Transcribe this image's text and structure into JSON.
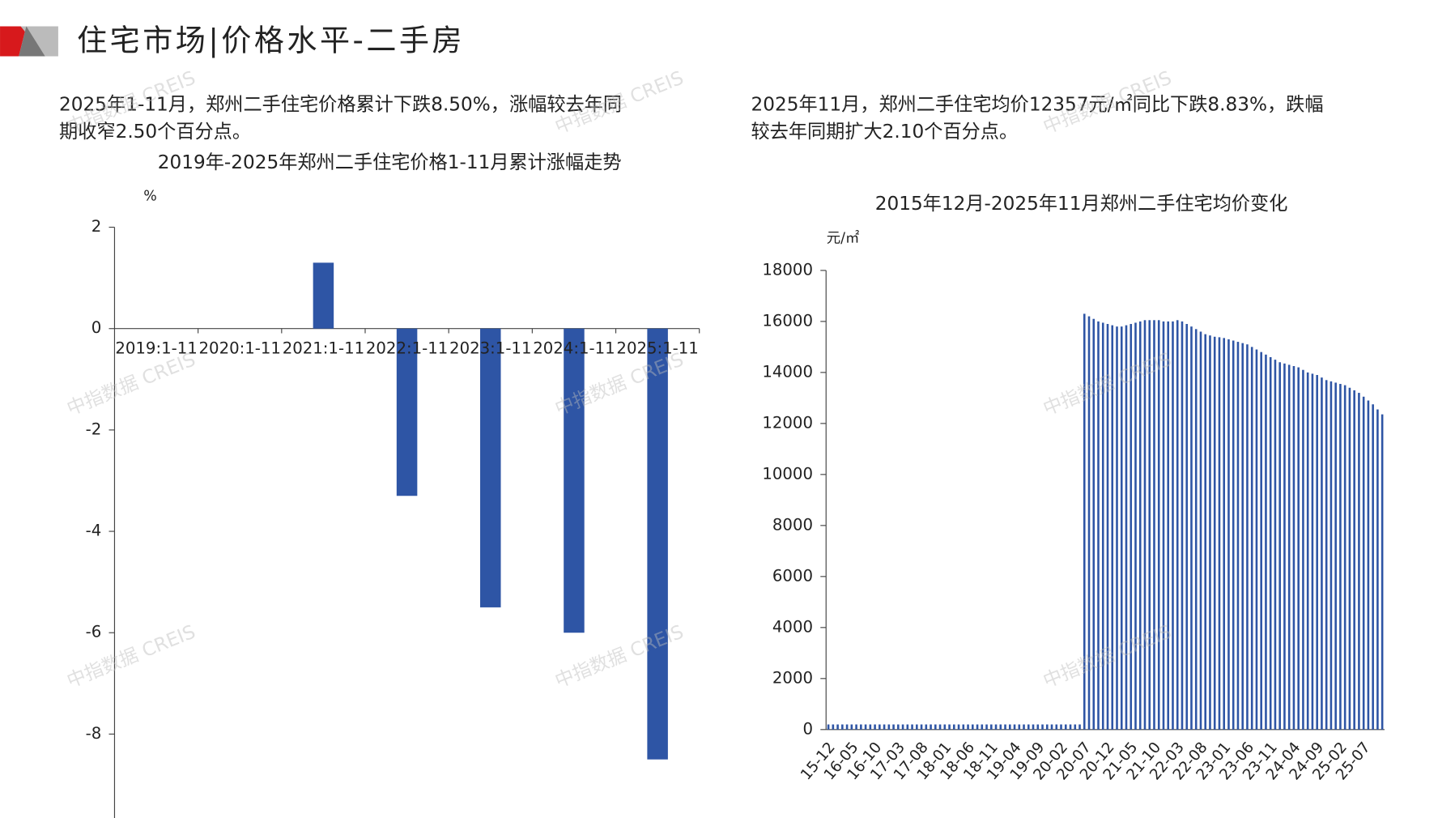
{
  "header": {
    "title": "住宅市场|价格水平-二手房"
  },
  "watermark": "中指数据 CREIS",
  "chart_data": [
    {
      "type": "bar",
      "summary": [
        "2025年1-11月，郑州二手住宅价格累计下跌8.50%，涨幅较去年同",
        "期收窄2.50个百分点。"
      ],
      "title": "2019年-2025年郑州二手住宅价格1-11月累计涨幅走势",
      "y_label": "%",
      "categories": [
        "2019:1-11",
        "2020:1-11",
        "2021:1-11",
        "2022:1-11",
        "2023:1-11",
        "2024:1-11",
        "2025:1-11"
      ],
      "values": [
        0,
        0,
        1.3,
        -3.3,
        -5.5,
        -6.0,
        -8.5
      ],
      "color": "#2e55a5",
      "ylim": [
        -9.8,
        2
      ],
      "yticks": [
        2,
        0,
        -2,
        -4,
        -6,
        -8
      ]
    },
    {
      "type": "bar",
      "summary": [
        "2025年11月，郑州二手住宅均价12357元/㎡同比下跌8.83%，跌幅",
        "较去年同期扩大2.10个百分点。"
      ],
      "title": "2015年12月-2025年11月郑州二手住宅均价变化",
      "y_label": "元/㎡",
      "categories": [
        "15-12",
        null,
        null,
        null,
        null,
        "16-05",
        null,
        null,
        null,
        null,
        "16-10",
        null,
        null,
        null,
        null,
        "17-03",
        null,
        null,
        null,
        null,
        "17-08",
        null,
        null,
        null,
        null,
        "18-01",
        null,
        null,
        null,
        null,
        "18-06",
        null,
        null,
        null,
        null,
        "18-11",
        null,
        null,
        null,
        null,
        "19-04",
        null,
        null,
        null,
        null,
        "19-09",
        null,
        null,
        null,
        null,
        "20-02",
        null,
        null,
        null,
        null,
        "20-07",
        null,
        null,
        null,
        null,
        "20-12",
        null,
        null,
        null,
        null,
        "21-05",
        null,
        null,
        null,
        null,
        "21-10",
        null,
        null,
        null,
        null,
        "22-03",
        null,
        null,
        null,
        null,
        "22-08",
        null,
        null,
        null,
        null,
        "23-01",
        null,
        null,
        null,
        null,
        "23-06",
        null,
        null,
        null,
        null,
        "23-11",
        null,
        null,
        null,
        null,
        "24-04",
        null,
        null,
        null,
        null,
        "24-09",
        null,
        null,
        null,
        null,
        "25-02",
        null,
        null,
        null,
        null,
        "25-07",
        null,
        null,
        null,
        null
      ],
      "values": [
        200,
        200,
        200,
        200,
        200,
        200,
        200,
        200,
        200,
        200,
        200,
        200,
        200,
        200,
        200,
        200,
        200,
        200,
        200,
        200,
        200,
        200,
        200,
        200,
        200,
        200,
        200,
        200,
        200,
        200,
        200,
        200,
        200,
        200,
        200,
        200,
        200,
        200,
        200,
        200,
        200,
        200,
        200,
        200,
        200,
        200,
        200,
        200,
        200,
        200,
        200,
        200,
        200,
        200,
        200,
        16300,
        16200,
        16100,
        16000,
        15950,
        15900,
        15850,
        15800,
        15800,
        15850,
        15900,
        15950,
        16000,
        16050,
        16050,
        16050,
        16050,
        16000,
        16000,
        16000,
        16050,
        16000,
        15900,
        15800,
        15700,
        15600,
        15500,
        15450,
        15400,
        15380,
        15350,
        15300,
        15250,
        15200,
        15150,
        15100,
        15000,
        14900,
        14800,
        14700,
        14600,
        14500,
        14400,
        14350,
        14300,
        14250,
        14200,
        14100,
        14000,
        13950,
        13900,
        13800,
        13700,
        13650,
        13600,
        13550,
        13500,
        13400,
        13300,
        13200,
        13050,
        12900,
        12750,
        12550,
        12357
      ],
      "color": "#2e55a5",
      "ylim": [
        0,
        18000
      ],
      "yticks": [
        0,
        2000,
        4000,
        6000,
        8000,
        10000,
        12000,
        14000,
        16000,
        18000
      ]
    }
  ]
}
